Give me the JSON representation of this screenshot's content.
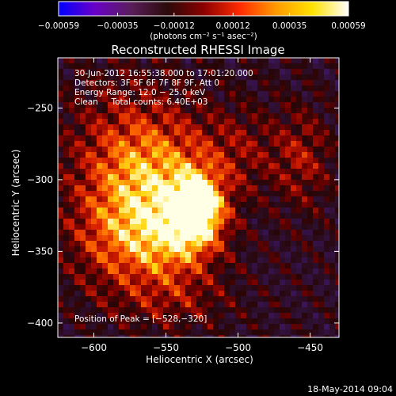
{
  "chart_data": {
    "type": "heatmap",
    "title": "Reconstructed RHESSI Image",
    "xlabel": "Heliocentric X (arcsec)",
    "ylabel": "Heliocentric Y (arcsec)",
    "xlim": [
      -625,
      -430
    ],
    "ylim": [
      -410,
      -215
    ],
    "xticks": [
      -600,
      -550,
      -500,
      -450
    ],
    "xtick_labels": [
      "−600",
      "−550",
      "−500",
      "−450"
    ],
    "yticks": [
      -250,
      -300,
      -350,
      -400
    ],
    "ytick_labels": [
      "−250",
      "−300",
      "−350",
      "−400"
    ],
    "colorbar": {
      "range": [
        -0.00059,
        0.00059
      ],
      "ticks": [
        -0.00059,
        -0.00035,
        -0.00012,
        0.00012,
        0.00035,
        0.00059
      ],
      "tick_labels": [
        "−0.00059",
        "−0.00035",
        "−0.00012",
        "0.00012",
        "0.00035",
        "0.00059"
      ],
      "units": "(photons cm⁻² s⁻¹ asec⁻²)",
      "colormap": [
        "#0000ff",
        "#6a00c8",
        "#5a1e5a",
        "#2a0a0a",
        "#8b0000",
        "#ff2a00",
        "#ff9a00",
        "#ffe200",
        "#ffffff"
      ]
    },
    "peak": {
      "x": -528,
      "y": -320
    },
    "sources": [
      {
        "x": -528,
        "y": -320,
        "sx": 12,
        "sy": 16,
        "amp": 1.0
      },
      {
        "x": -552,
        "y": -312,
        "sx": 26,
        "sy": 36,
        "amp": 0.55
      },
      {
        "x": -580,
        "y": -290,
        "sx": 30,
        "sy": 40,
        "amp": 0.4
      },
      {
        "x": -545,
        "y": -345,
        "sx": 22,
        "sy": 18,
        "amp": 0.35
      },
      {
        "x": -590,
        "y": -345,
        "sx": 22,
        "sy": 26,
        "amp": 0.28
      },
      {
        "x": -455,
        "y": -285,
        "sx": 14,
        "sy": 25,
        "amp": 0.3
      },
      {
        "x": -500,
        "y": -280,
        "sx": 22,
        "sy": 22,
        "amp": 0.25
      },
      {
        "x": -545,
        "y": -385,
        "sx": 28,
        "sy": 14,
        "amp": 0.22
      }
    ],
    "annotations": [
      "30‑Jun‑2012 16:55:38.000 to 17:01:20.000",
      "Detectors: 3F 5F 6F 7F 8F 9F, Att 0",
      "Energy Range: 12.0 − 25.0 keV",
      "Clean     Total counts: 6.40E+03"
    ],
    "peak_label": "Position of Peak = [−528,−320]"
  },
  "footer_date": "18‑May‑2014 09:04"
}
